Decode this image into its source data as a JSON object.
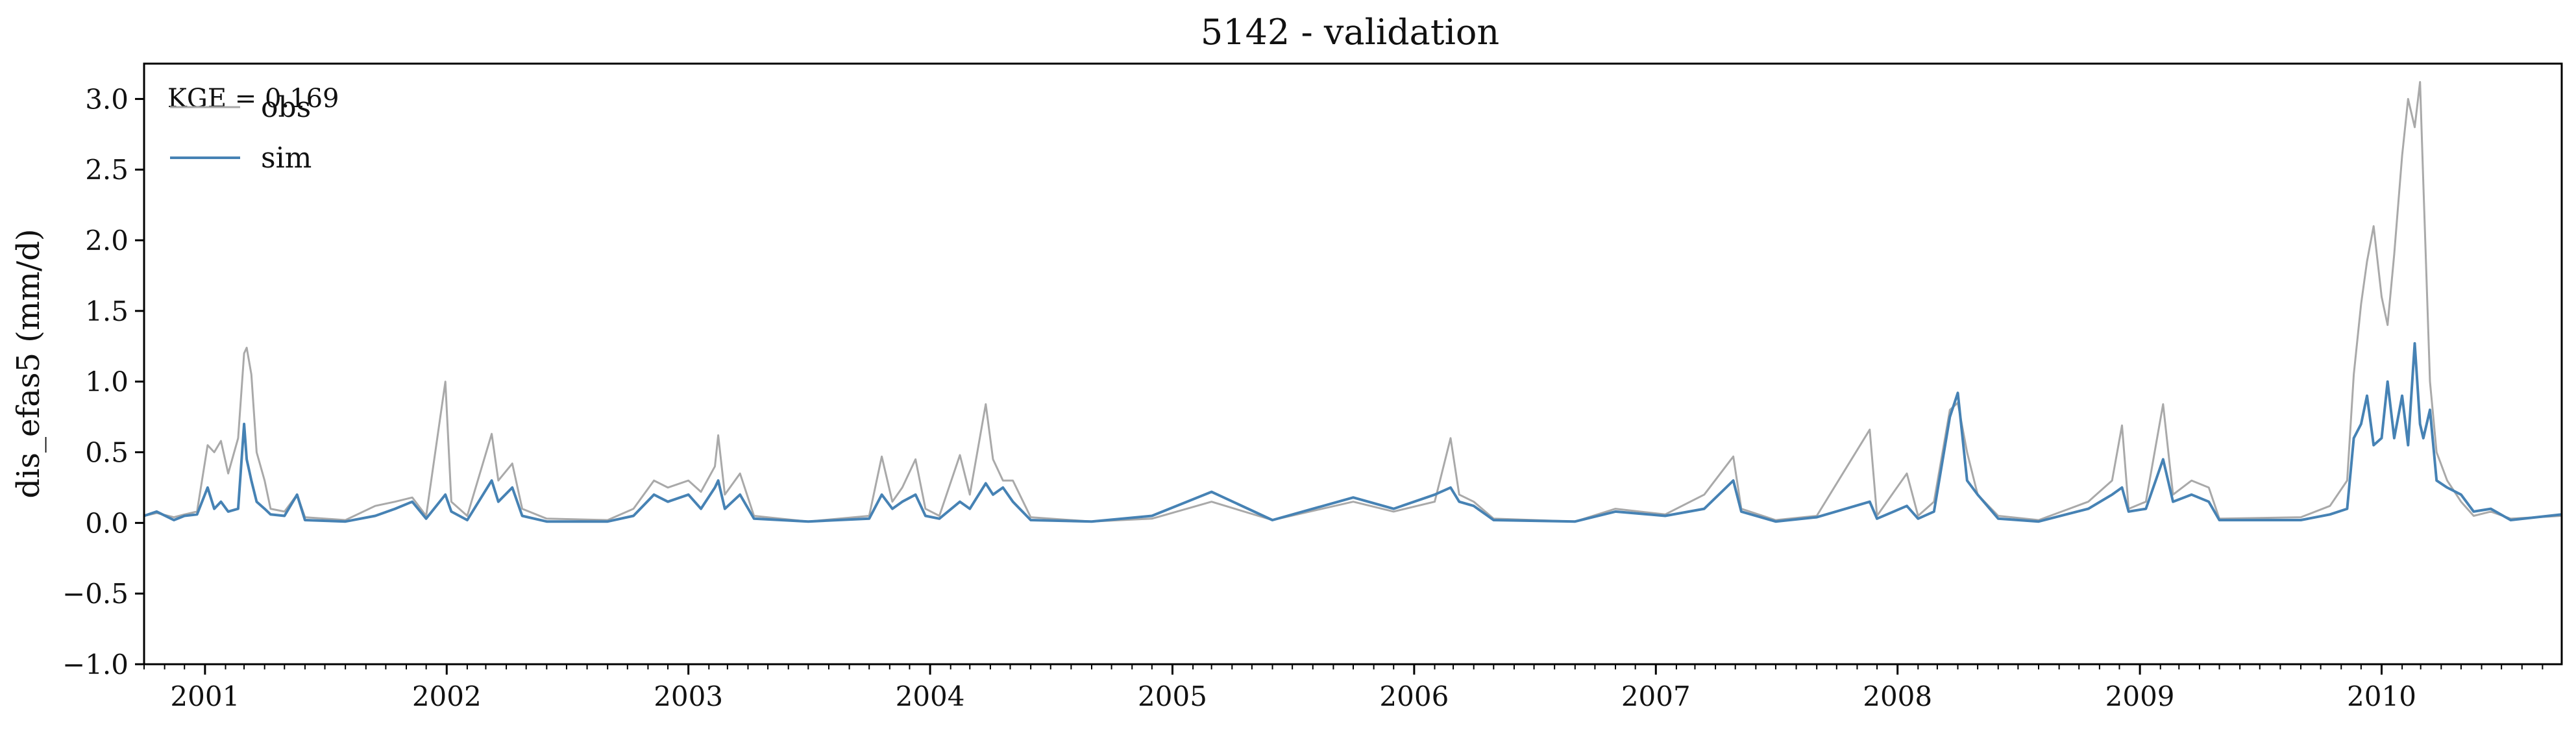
{
  "chart_data": {
    "type": "line",
    "title": "5142 - validation",
    "ylabel": "dis_efas5 (mm/d)",
    "xlabel": "",
    "annotation": "KGE = 0.169",
    "legend_position": "top-left",
    "ylim": [
      -1.0,
      3.25
    ],
    "xlim": [
      "2000-10-01",
      "2010-09-30"
    ],
    "grid": false,
    "yticks": [
      "−1.0",
      "−0.5",
      "0.0",
      "0.5",
      "1.0",
      "1.5",
      "2.0",
      "2.5",
      "3.0"
    ],
    "xticks": [
      "2001",
      "2002",
      "2003",
      "2004",
      "2005",
      "2006",
      "2007",
      "2008",
      "2009",
      "2010"
    ],
    "series": [
      {
        "name": "obs",
        "color": "#a9a9a9",
        "points": [
          [
            "2000-10-01",
            0.05
          ],
          [
            "2000-10-20",
            0.07
          ],
          [
            "2000-11-15",
            0.04
          ],
          [
            "2000-12-01",
            0.06
          ],
          [
            "2000-12-20",
            0.08
          ],
          [
            "2001-01-05",
            0.55
          ],
          [
            "2001-01-15",
            0.5
          ],
          [
            "2001-01-25",
            0.58
          ],
          [
            "2001-02-05",
            0.35
          ],
          [
            "2001-02-20",
            0.6
          ],
          [
            "2001-03-01",
            1.2
          ],
          [
            "2001-03-05",
            1.24
          ],
          [
            "2001-03-12",
            1.05
          ],
          [
            "2001-03-20",
            0.5
          ],
          [
            "2001-04-01",
            0.3
          ],
          [
            "2001-04-10",
            0.1
          ],
          [
            "2001-05-01",
            0.08
          ],
          [
            "2001-05-20",
            0.2
          ],
          [
            "2001-06-01",
            0.04
          ],
          [
            "2001-08-01",
            0.02
          ],
          [
            "2001-09-15",
            0.12
          ],
          [
            "2001-10-15",
            0.15
          ],
          [
            "2001-11-10",
            0.18
          ],
          [
            "2001-12-01",
            0.05
          ],
          [
            "2001-12-30",
            1.0
          ],
          [
            "2002-01-08",
            0.15
          ],
          [
            "2002-02-01",
            0.05
          ],
          [
            "2002-03-10",
            0.63
          ],
          [
            "2002-03-20",
            0.3
          ],
          [
            "2002-04-10",
            0.42
          ],
          [
            "2002-04-25",
            0.1
          ],
          [
            "2002-06-01",
            0.03
          ],
          [
            "2002-09-01",
            0.02
          ],
          [
            "2002-10-10",
            0.1
          ],
          [
            "2002-11-10",
            0.3
          ],
          [
            "2002-12-01",
            0.25
          ],
          [
            "2003-01-01",
            0.3
          ],
          [
            "2003-01-20",
            0.22
          ],
          [
            "2003-02-10",
            0.4
          ],
          [
            "2003-02-15",
            0.62
          ],
          [
            "2003-02-25",
            0.2
          ],
          [
            "2003-03-20",
            0.35
          ],
          [
            "2003-04-10",
            0.05
          ],
          [
            "2003-07-01",
            0.01
          ],
          [
            "2003-10-01",
            0.05
          ],
          [
            "2003-10-20",
            0.47
          ],
          [
            "2003-11-05",
            0.15
          ],
          [
            "2003-11-20",
            0.25
          ],
          [
            "2003-12-10",
            0.45
          ],
          [
            "2003-12-25",
            0.1
          ],
          [
            "2004-01-15",
            0.05
          ],
          [
            "2004-02-15",
            0.48
          ],
          [
            "2004-03-01",
            0.2
          ],
          [
            "2004-03-25",
            0.84
          ],
          [
            "2004-04-05",
            0.45
          ],
          [
            "2004-04-20",
            0.3
          ],
          [
            "2004-05-05",
            0.3
          ],
          [
            "2004-06-01",
            0.04
          ],
          [
            "2004-09-01",
            0.01
          ],
          [
            "2004-12-01",
            0.03
          ],
          [
            "2005-03-01",
            0.15
          ],
          [
            "2005-06-01",
            0.02
          ],
          [
            "2005-10-01",
            0.15
          ],
          [
            "2005-12-01",
            0.08
          ],
          [
            "2006-02-01",
            0.15
          ],
          [
            "2006-02-25",
            0.6
          ],
          [
            "2006-03-10",
            0.2
          ],
          [
            "2006-04-01",
            0.15
          ],
          [
            "2006-05-01",
            0.03
          ],
          [
            "2006-09-01",
            0.01
          ],
          [
            "2006-11-01",
            0.1
          ],
          [
            "2007-01-15",
            0.06
          ],
          [
            "2007-03-15",
            0.2
          ],
          [
            "2007-04-28",
            0.47
          ],
          [
            "2007-05-10",
            0.1
          ],
          [
            "2007-07-01",
            0.02
          ],
          [
            "2007-09-01",
            0.05
          ],
          [
            "2007-11-20",
            0.66
          ],
          [
            "2007-12-01",
            0.05
          ],
          [
            "2008-01-15",
            0.35
          ],
          [
            "2008-02-01",
            0.05
          ],
          [
            "2008-02-25",
            0.15
          ],
          [
            "2008-03-20",
            0.8
          ],
          [
            "2008-04-01",
            0.85
          ],
          [
            "2008-04-15",
            0.5
          ],
          [
            "2008-05-01",
            0.2
          ],
          [
            "2008-06-01",
            0.05
          ],
          [
            "2008-08-01",
            0.02
          ],
          [
            "2008-10-15",
            0.15
          ],
          [
            "2008-11-20",
            0.3
          ],
          [
            "2008-12-05",
            0.69
          ],
          [
            "2008-12-15",
            0.1
          ],
          [
            "2009-01-10",
            0.15
          ],
          [
            "2009-02-05",
            0.84
          ],
          [
            "2009-02-20",
            0.2
          ],
          [
            "2009-03-20",
            0.3
          ],
          [
            "2009-04-15",
            0.25
          ],
          [
            "2009-05-01",
            0.03
          ],
          [
            "2009-09-01",
            0.04
          ],
          [
            "2009-10-15",
            0.12
          ],
          [
            "2009-11-10",
            0.3
          ],
          [
            "2009-11-20",
            1.05
          ],
          [
            "2009-12-01",
            1.55
          ],
          [
            "2009-12-10",
            1.85
          ],
          [
            "2009-12-20",
            2.1
          ],
          [
            "2010-01-01",
            1.6
          ],
          [
            "2010-01-10",
            1.4
          ],
          [
            "2010-01-20",
            1.9
          ],
          [
            "2010-02-01",
            2.6
          ],
          [
            "2010-02-10",
            3.0
          ],
          [
            "2010-02-20",
            2.8
          ],
          [
            "2010-02-28",
            3.12
          ],
          [
            "2010-03-05",
            2.4
          ],
          [
            "2010-03-15",
            1.0
          ],
          [
            "2010-03-25",
            0.5
          ],
          [
            "2010-04-10",
            0.3
          ],
          [
            "2010-05-01",
            0.15
          ],
          [
            "2010-05-20",
            0.05
          ],
          [
            "2010-06-15",
            0.08
          ],
          [
            "2010-07-15",
            0.03
          ],
          [
            "2010-09-30",
            0.05
          ]
        ]
      },
      {
        "name": "sim",
        "color": "#4682b4",
        "points": [
          [
            "2000-10-01",
            0.05
          ],
          [
            "2000-10-20",
            0.08
          ],
          [
            "2000-11-15",
            0.02
          ],
          [
            "2000-12-01",
            0.05
          ],
          [
            "2000-12-20",
            0.06
          ],
          [
            "2001-01-05",
            0.25
          ],
          [
            "2001-01-15",
            0.1
          ],
          [
            "2001-01-25",
            0.15
          ],
          [
            "2001-02-05",
            0.08
          ],
          [
            "2001-02-20",
            0.1
          ],
          [
            "2001-03-01",
            0.7
          ],
          [
            "2001-03-05",
            0.45
          ],
          [
            "2001-03-12",
            0.3
          ],
          [
            "2001-03-20",
            0.15
          ],
          [
            "2001-04-01",
            0.1
          ],
          [
            "2001-04-10",
            0.06
          ],
          [
            "2001-05-01",
            0.05
          ],
          [
            "2001-05-20",
            0.2
          ],
          [
            "2001-06-01",
            0.02
          ],
          [
            "2001-08-01",
            0.01
          ],
          [
            "2001-09-15",
            0.05
          ],
          [
            "2001-10-15",
            0.1
          ],
          [
            "2001-11-10",
            0.15
          ],
          [
            "2001-12-01",
            0.03
          ],
          [
            "2001-12-30",
            0.2
          ],
          [
            "2002-01-08",
            0.08
          ],
          [
            "2002-02-01",
            0.02
          ],
          [
            "2002-03-10",
            0.3
          ],
          [
            "2002-03-20",
            0.15
          ],
          [
            "2002-04-10",
            0.25
          ],
          [
            "2002-04-25",
            0.05
          ],
          [
            "2002-06-01",
            0.01
          ],
          [
            "2002-09-01",
            0.01
          ],
          [
            "2002-10-10",
            0.05
          ],
          [
            "2002-11-10",
            0.2
          ],
          [
            "2002-12-01",
            0.15
          ],
          [
            "2003-01-01",
            0.2
          ],
          [
            "2003-01-20",
            0.1
          ],
          [
            "2003-02-10",
            0.25
          ],
          [
            "2003-02-15",
            0.3
          ],
          [
            "2003-02-25",
            0.1
          ],
          [
            "2003-03-20",
            0.2
          ],
          [
            "2003-04-10",
            0.03
          ],
          [
            "2003-07-01",
            0.01
          ],
          [
            "2003-10-01",
            0.03
          ],
          [
            "2003-10-20",
            0.2
          ],
          [
            "2003-11-05",
            0.1
          ],
          [
            "2003-11-20",
            0.15
          ],
          [
            "2003-12-10",
            0.2
          ],
          [
            "2003-12-25",
            0.05
          ],
          [
            "2004-01-15",
            0.03
          ],
          [
            "2004-02-15",
            0.15
          ],
          [
            "2004-03-01",
            0.1
          ],
          [
            "2004-03-25",
            0.28
          ],
          [
            "2004-04-05",
            0.2
          ],
          [
            "2004-04-20",
            0.25
          ],
          [
            "2004-05-05",
            0.15
          ],
          [
            "2004-06-01",
            0.02
          ],
          [
            "2004-09-01",
            0.01
          ],
          [
            "2004-12-01",
            0.05
          ],
          [
            "2005-03-01",
            0.22
          ],
          [
            "2005-06-01",
            0.02
          ],
          [
            "2005-10-01",
            0.18
          ],
          [
            "2005-12-01",
            0.1
          ],
          [
            "2006-02-01",
            0.2
          ],
          [
            "2006-02-25",
            0.25
          ],
          [
            "2006-03-10",
            0.15
          ],
          [
            "2006-04-01",
            0.12
          ],
          [
            "2006-05-01",
            0.02
          ],
          [
            "2006-09-01",
            0.01
          ],
          [
            "2006-11-01",
            0.08
          ],
          [
            "2007-01-15",
            0.05
          ],
          [
            "2007-03-15",
            0.1
          ],
          [
            "2007-04-28",
            0.3
          ],
          [
            "2007-05-10",
            0.08
          ],
          [
            "2007-07-01",
            0.01
          ],
          [
            "2007-09-01",
            0.04
          ],
          [
            "2007-11-20",
            0.15
          ],
          [
            "2007-12-01",
            0.03
          ],
          [
            "2008-01-15",
            0.12
          ],
          [
            "2008-02-01",
            0.03
          ],
          [
            "2008-02-25",
            0.08
          ],
          [
            "2008-03-20",
            0.75
          ],
          [
            "2008-04-01",
            0.92
          ],
          [
            "2008-04-15",
            0.3
          ],
          [
            "2008-05-01",
            0.2
          ],
          [
            "2008-06-01",
            0.03
          ],
          [
            "2008-08-01",
            0.01
          ],
          [
            "2008-10-15",
            0.1
          ],
          [
            "2008-11-20",
            0.2
          ],
          [
            "2008-12-05",
            0.25
          ],
          [
            "2008-12-15",
            0.08
          ],
          [
            "2009-01-10",
            0.1
          ],
          [
            "2009-02-05",
            0.45
          ],
          [
            "2009-02-20",
            0.15
          ],
          [
            "2009-03-20",
            0.2
          ],
          [
            "2009-04-15",
            0.15
          ],
          [
            "2009-05-01",
            0.02
          ],
          [
            "2009-09-01",
            0.02
          ],
          [
            "2009-10-15",
            0.06
          ],
          [
            "2009-11-10",
            0.1
          ],
          [
            "2009-11-20",
            0.6
          ],
          [
            "2009-12-01",
            0.7
          ],
          [
            "2009-12-10",
            0.9
          ],
          [
            "2009-12-20",
            0.55
          ],
          [
            "2010-01-01",
            0.6
          ],
          [
            "2010-01-10",
            1.0
          ],
          [
            "2010-01-20",
            0.6
          ],
          [
            "2010-02-01",
            0.9
          ],
          [
            "2010-02-10",
            0.55
          ],
          [
            "2010-02-20",
            1.27
          ],
          [
            "2010-02-28",
            0.7
          ],
          [
            "2010-03-05",
            0.6
          ],
          [
            "2010-03-15",
            0.8
          ],
          [
            "2010-03-25",
            0.3
          ],
          [
            "2010-04-10",
            0.25
          ],
          [
            "2010-05-01",
            0.2
          ],
          [
            "2010-05-20",
            0.08
          ],
          [
            "2010-06-15",
            0.1
          ],
          [
            "2010-07-15",
            0.02
          ],
          [
            "2010-09-30",
            0.06
          ]
        ]
      }
    ]
  }
}
